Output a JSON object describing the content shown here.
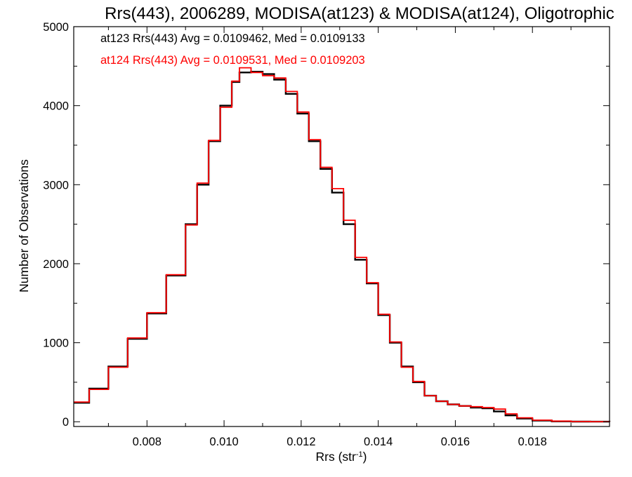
{
  "chart_data": {
    "type": "line",
    "step": true,
    "title": "Rrs(443), 2006289, MODISA(at123) & MODISA(at124), Oligotrophic",
    "xlabel": "Rrs (str",
    "xlabel_sup": "-1",
    "xlabel_end": ")",
    "ylabel": "Number of Observations",
    "xlim": [
      0.0061,
      0.02
    ],
    "ylim": [
      -60,
      5000
    ],
    "xticks": [
      0.008,
      0.01,
      0.012,
      0.014,
      0.016,
      0.018
    ],
    "xtick_labels": [
      "0.008",
      "0.010",
      "0.012",
      "0.014",
      "0.016",
      "0.018"
    ],
    "yticks": [
      0,
      1000,
      2000,
      3000,
      4000,
      5000
    ],
    "ytick_labels": [
      "0",
      "1000",
      "2000",
      "3000",
      "4000",
      "5000"
    ],
    "grid": false,
    "legend_position": "top-left",
    "annotations": [
      {
        "text": "at123 Rrs(443) Avg = 0.0109462, Med = 0.0109133",
        "color": "#000000"
      },
      {
        "text": "at124 Rrs(443) Avg = 0.0109531, Med = 0.0109203",
        "color": "#ff0000"
      }
    ],
    "series": [
      {
        "color": "#000000",
        "x": [
          0.0061,
          0.0065,
          0.007,
          0.0075,
          0.008,
          0.0085,
          0.009,
          0.0093,
          0.0096,
          0.0099,
          0.0102,
          0.0104,
          0.0107,
          0.011,
          0.0113,
          0.0116,
          0.0119,
          0.0122,
          0.0125,
          0.0128,
          0.0131,
          0.0134,
          0.0137,
          0.014,
          0.0143,
          0.0146,
          0.0149,
          0.0152,
          0.0155,
          0.0158,
          0.0161,
          0.0164,
          0.0167,
          0.017,
          0.0173,
          0.0176,
          0.018,
          0.0185,
          0.019,
          0.0195,
          0.02
        ],
        "y": [
          240,
          420,
          700,
          1050,
          1370,
          1850,
          2500,
          3000,
          3550,
          4000,
          4300,
          4420,
          4430,
          4400,
          4330,
          4150,
          3900,
          3550,
          3200,
          2900,
          2500,
          2050,
          1750,
          1350,
          1000,
          700,
          500,
          330,
          260,
          220,
          200,
          180,
          170,
          130,
          80,
          40,
          15,
          5,
          2,
          1,
          0
        ]
      },
      {
        "color": "#ff0000",
        "x": [
          0.0061,
          0.0065,
          0.007,
          0.0075,
          0.008,
          0.0085,
          0.009,
          0.0093,
          0.0096,
          0.0099,
          0.0102,
          0.0104,
          0.0107,
          0.011,
          0.0113,
          0.0116,
          0.0119,
          0.0122,
          0.0125,
          0.0128,
          0.0131,
          0.0134,
          0.0137,
          0.014,
          0.0143,
          0.0146,
          0.0149,
          0.0152,
          0.0155,
          0.0158,
          0.0161,
          0.0164,
          0.0167,
          0.017,
          0.0173,
          0.0176,
          0.018,
          0.0185,
          0.019,
          0.0195,
          0.02
        ],
        "y": [
          250,
          410,
          690,
          1060,
          1380,
          1860,
          2490,
          3020,
          3560,
          3980,
          4310,
          4480,
          4420,
          4380,
          4350,
          4180,
          3920,
          3570,
          3220,
          2950,
          2550,
          2080,
          1760,
          1360,
          1010,
          690,
          510,
          330,
          260,
          220,
          200,
          190,
          180,
          160,
          100,
          50,
          20,
          8,
          3,
          1,
          0
        ]
      }
    ]
  }
}
